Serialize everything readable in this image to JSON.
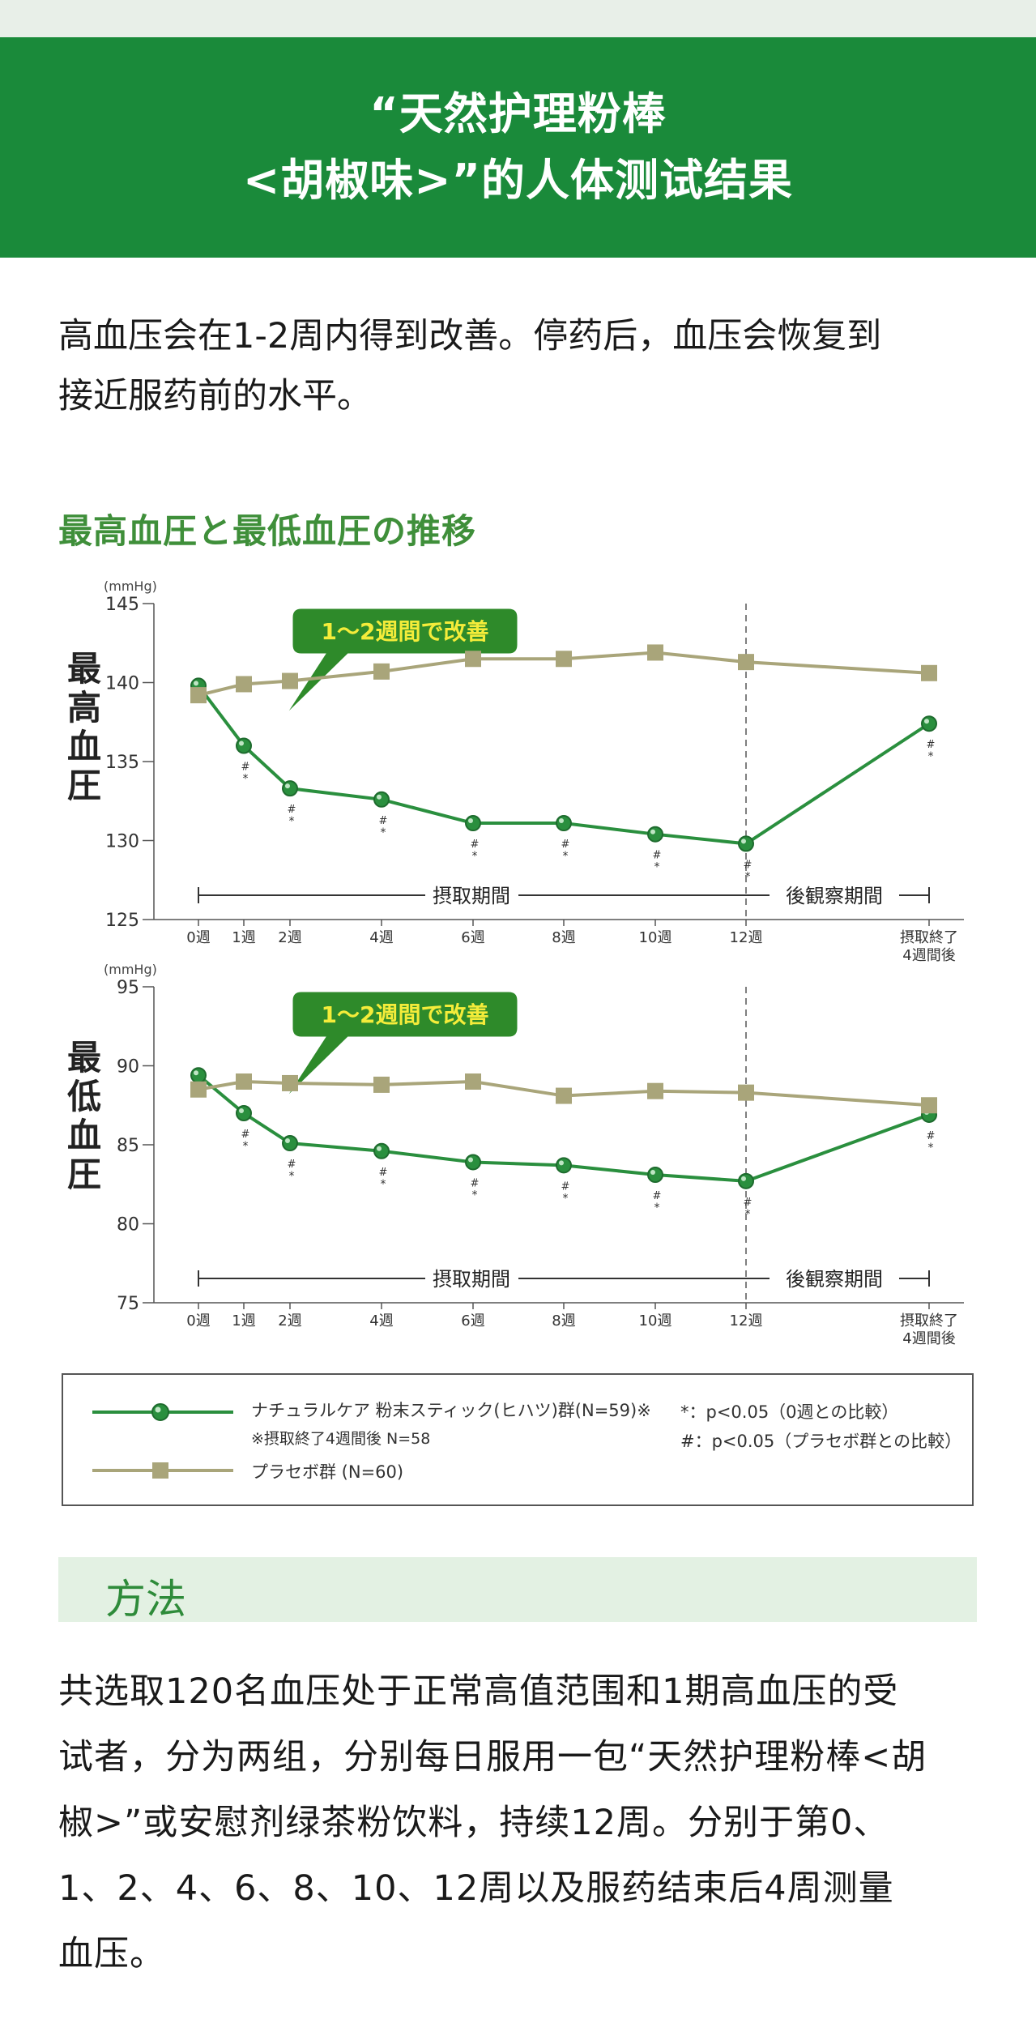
{
  "banner": {
    "line1": "“天然护理粉棒",
    "line2": "<胡椒味>”的人体测试结果"
  },
  "intro": {
    "line1": "高血压会在1-2周内得到改善。停药后，血压会恢复到",
    "line2": "接近服药前的水平。"
  },
  "chart_title": "最高血圧と最低血圧の推移",
  "chart_data": [
    {
      "type": "line",
      "title": "",
      "ylabel": "最高血圧",
      "yunit": "(mmHg)",
      "ylim": [
        125,
        145
      ],
      "yticks": [
        125,
        130,
        135,
        140,
        145
      ],
      "x": [
        0,
        1,
        2,
        4,
        6,
        8,
        10,
        12,
        16
      ],
      "xticklabels": [
        "0週",
        "1週",
        "2週",
        "4週",
        "6週",
        "8週",
        "10週",
        "12週",
        "摂取終了\n4週間後"
      ],
      "series": [
        {
          "name": "ナチュラルケア 粉末スティック(ヒハツ)群(N=59)※",
          "color": "#2a8f3e",
          "values": [
            139.8,
            136.0,
            133.3,
            132.6,
            131.1,
            131.1,
            130.4,
            129.8,
            137.4
          ],
          "marks": [
            "",
            "#*",
            "#*",
            "#*",
            "#*",
            "#*",
            "#*",
            "#*",
            "#*"
          ]
        },
        {
          "name": "プラセボ群 (N=60)",
          "color": "#a9a57a",
          "values": [
            139.2,
            139.9,
            140.1,
            140.7,
            141.5,
            141.5,
            141.9,
            141.3,
            140.6
          ]
        }
      ],
      "callout": "1～2週間で改善",
      "period_labels": [
        "摂取期間",
        "後観察期間"
      ]
    },
    {
      "type": "line",
      "title": "",
      "ylabel": "最低血圧",
      "yunit": "(mmHg)",
      "ylim": [
        75,
        95
      ],
      "yticks": [
        75,
        80,
        85,
        90,
        95
      ],
      "x": [
        0,
        1,
        2,
        4,
        6,
        8,
        10,
        12,
        16
      ],
      "xticklabels": [
        "0週",
        "1週",
        "2週",
        "4週",
        "6週",
        "8週",
        "10週",
        "12週",
        "摂取終了\n4週間後"
      ],
      "series": [
        {
          "name": "ナチュラルケア 粉末スティック(ヒハツ)群(N=59)※",
          "color": "#2a8f3e",
          "values": [
            89.4,
            87.0,
            85.1,
            84.6,
            83.9,
            83.7,
            83.1,
            82.7,
            86.9
          ],
          "marks": [
            "",
            "#*",
            "#*",
            "#*",
            "#*",
            "#*",
            "#*",
            "#*",
            "#*"
          ]
        },
        {
          "name": "プラセボ群 (N=60)",
          "color": "#a9a57a",
          "values": [
            88.5,
            89.0,
            88.9,
            88.8,
            89.0,
            88.1,
            88.4,
            88.3,
            87.5
          ]
        }
      ],
      "callout": "1～2週間で改善",
      "period_labels": [
        "摂取期間",
        "後観察期間"
      ]
    }
  ],
  "legend": {
    "green_label": "ナチュラルケア 粉末スティック(ヒハツ)群(N=59)※",
    "green_sub": "※摂取終了4週間後 N=58",
    "tan_label": "プラセボ群 (N=60)",
    "note1": "*：p<0.05（0週との比較）",
    "note2": "#：p<0.05（プラセボ群との比較）"
  },
  "method": {
    "heading": "方法",
    "lines": [
      "共选取120名血压处于正常高值范围和1期高血压的受",
      "试者，分为两组，分别每日服用一包“天然护理粉棒<胡",
      "椒>”或安慰剂绿茶粉饮料，持续12周。分别于第0、",
      "1、2、4、6、8、10、12周以及服药结束后4周测量",
      "血压。"
    ]
  }
}
